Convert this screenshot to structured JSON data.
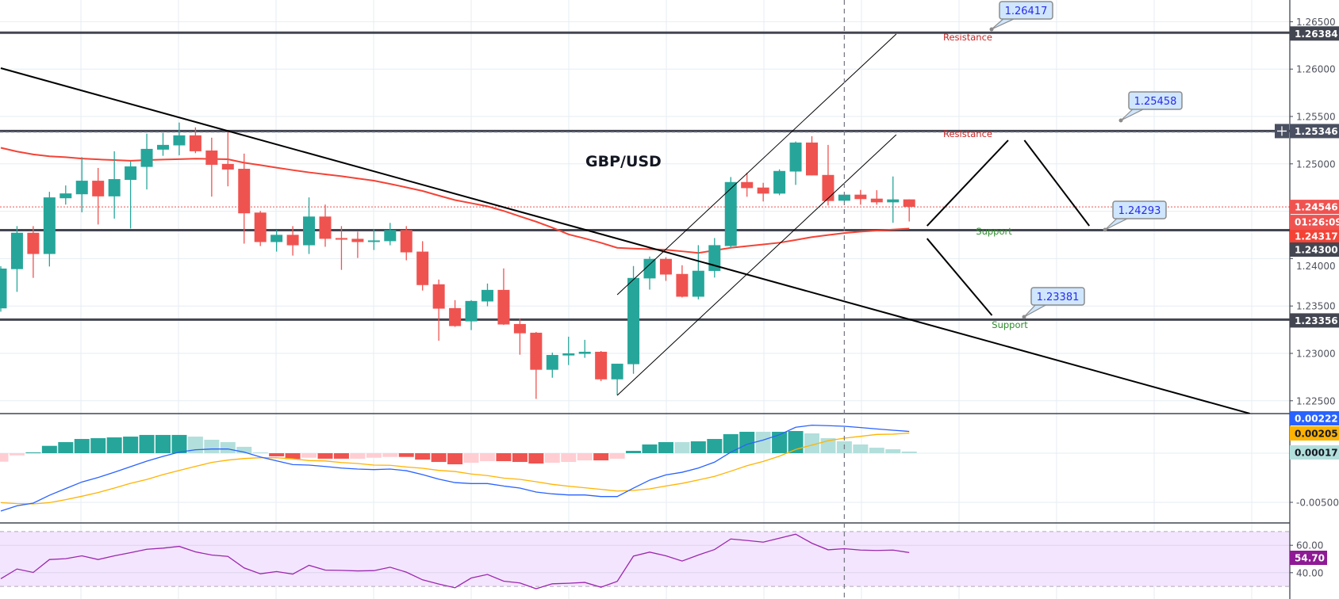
{
  "colors": {
    "up": "#26a69a",
    "down": "#ef5350",
    "hist_up_strong": "#26a69a",
    "hist_up_weak": "#b2dfdb",
    "hist_down_strong": "#ef5350",
    "hist_down_weak": "#ffcdd2",
    "macd": "#2962ff",
    "signal": "#ffb300",
    "rsi": "#9c27b0",
    "rsi_band": "#f3e5fd",
    "ma": "#f44336",
    "level": "#434651",
    "grid": "#e6edf3",
    "callout_fill": "#cfe6fd",
    "callout_text": "#2a2ae8",
    "resistance_text": "#c62828",
    "support_text": "#2e8b2e"
  },
  "chart_data": {
    "type": "candlestick",
    "title": "GBP/USD",
    "ylim": [
      1.22365,
      1.26729
    ],
    "price_axis_ticks": [
      "1.26500",
      "1.26000",
      "1.25500",
      "1.25000",
      "1.24000",
      "1.23500",
      "1.23000",
      "1.22500"
    ],
    "price_axis_tick_values": [
      1.265,
      1.26,
      1.255,
      1.25,
      1.24,
      1.235,
      1.23,
      1.225
    ],
    "grid": true,
    "candles_ohlc": [
      [
        1.23475,
        1.2392,
        1.2344,
        1.23895
      ],
      [
        1.23889,
        1.24343,
        1.23649,
        1.24273
      ],
      [
        1.24273,
        1.24343,
        1.23797,
        1.24049
      ],
      [
        1.24049,
        1.24705,
        1.23917,
        1.24646
      ],
      [
        1.24637,
        1.24772,
        1.2457,
        1.24688
      ],
      [
        1.24679,
        1.25071,
        1.24489,
        1.24822
      ],
      [
        1.24822,
        1.24957,
        1.2436,
        1.24657
      ],
      [
        1.24657,
        1.25133,
        1.24422,
        1.24839
      ],
      [
        1.24831,
        1.25024,
        1.24318,
        1.24973
      ],
      [
        1.24968,
        1.25318,
        1.2473,
        1.25158
      ],
      [
        1.2515,
        1.25326,
        1.25085,
        1.252
      ],
      [
        1.25195,
        1.25436,
        1.25091,
        1.25301
      ],
      [
        1.25301,
        1.25385,
        1.25113,
        1.25133
      ],
      [
        1.25141,
        1.25276,
        1.24654,
        1.2499
      ],
      [
        1.24999,
        1.25352,
        1.24763,
        1.2494
      ],
      [
        1.24948,
        1.25108,
        1.24158,
        1.24478
      ],
      [
        1.24486,
        1.24503,
        1.24133,
        1.24175
      ],
      [
        1.24175,
        1.24301,
        1.24074,
        1.24251
      ],
      [
        1.24251,
        1.24343,
        1.24032,
        1.24141
      ],
      [
        1.24141,
        1.24646,
        1.24049,
        1.24444
      ],
      [
        1.24444,
        1.2457,
        1.24125,
        1.24209
      ],
      [
        1.24217,
        1.24343,
        1.23881,
        1.242
      ],
      [
        1.24209,
        1.24284,
        1.24007,
        1.24175
      ],
      [
        1.24178,
        1.2431,
        1.24091,
        1.24192
      ],
      [
        1.24184,
        1.24377,
        1.24141,
        1.24301
      ],
      [
        1.24301,
        1.24343,
        1.23982,
        1.24066
      ],
      [
        1.24074,
        1.24184,
        1.23663,
        1.23721
      ],
      [
        1.23729,
        1.23779,
        1.23134,
        1.23472
      ],
      [
        1.23478,
        1.23562,
        1.2328,
        1.23288
      ],
      [
        1.23338,
        1.23562,
        1.23246,
        1.23553
      ],
      [
        1.23548,
        1.23737,
        1.23497,
        1.2367
      ],
      [
        1.2367,
        1.23897,
        1.233,
        1.23305
      ],
      [
        1.2331,
        1.23369,
        1.22986,
        1.23212
      ],
      [
        1.23218,
        1.23226,
        1.2252,
        1.22827
      ],
      [
        1.22827,
        1.23008,
        1.22743,
        1.22983
      ],
      [
        1.22978,
        1.23176,
        1.22877,
        1.23
      ],
      [
        1.22995,
        1.23143,
        1.22953,
        1.23017
      ],
      [
        1.23017,
        1.23025,
        1.22707,
        1.22726
      ],
      [
        1.22726,
        1.22891,
        1.2256,
        1.22891
      ],
      [
        1.22886,
        1.23922,
        1.22785,
        1.23796
      ],
      [
        1.23791,
        1.24022,
        1.23673,
        1.23997
      ],
      [
        1.23997,
        1.24014,
        1.23765,
        1.23832
      ],
      [
        1.23838,
        1.2393,
        1.2359,
        1.23598
      ],
      [
        1.23598,
        1.24142,
        1.2357,
        1.23872
      ],
      [
        1.2387,
        1.24217,
        1.238,
        1.24142
      ],
      [
        1.24133,
        1.24861,
        1.24111,
        1.24808
      ],
      [
        1.24808,
        1.24906,
        1.24653,
        1.24744
      ],
      [
        1.2475,
        1.248,
        1.24603,
        1.24686
      ],
      [
        1.24686,
        1.24942,
        1.24669,
        1.24925
      ],
      [
        1.24919,
        1.25236,
        1.24778,
        1.25225
      ],
      [
        1.25225,
        1.25292,
        1.24878,
        1.24878
      ],
      [
        1.24883,
        1.252,
        1.24561,
        1.24608
      ],
      [
        1.24611,
        1.24675,
        1.24611,
        1.24675
      ],
      [
        1.24675,
        1.24725,
        1.24569,
        1.24628
      ],
      [
        1.24633,
        1.24722,
        1.24569,
        1.24594
      ],
      [
        1.24594,
        1.24867,
        1.24378,
        1.24625
      ],
      [
        1.24625,
        1.24625,
        1.24392,
        1.24546
      ]
    ],
    "moving_average": [
      1.2517,
      1.2513,
      1.251,
      1.2508,
      1.2507,
      1.25056,
      1.25047,
      1.2504,
      1.25033,
      1.2504,
      1.25045,
      1.2505,
      1.25055,
      1.25052,
      1.25048,
      1.25012,
      1.24987,
      1.2496,
      1.24934,
      1.2491,
      1.2489,
      1.2487,
      1.24846,
      1.24823,
      1.24788,
      1.24752,
      1.24714,
      1.24665,
      1.24618,
      1.24585,
      1.24552,
      1.24503,
      1.24446,
      1.2439,
      1.24327,
      1.24256,
      1.24213,
      1.24167,
      1.24114,
      1.24106,
      1.24099,
      1.24093,
      1.24077,
      1.2406,
      1.24087,
      1.24114,
      1.24132,
      1.2415,
      1.24168,
      1.24197,
      1.24227,
      1.24249,
      1.2427,
      1.24284,
      1.24296,
      1.24306,
      1.24317
    ],
    "levels": [
      {
        "price": 1.26384,
        "label": "Resistance",
        "axis_label": "1.26384",
        "callout": "1.26417"
      },
      {
        "price": 1.25346,
        "label": "Resistance",
        "axis_label": "1.25346",
        "callout": "1.25458"
      },
      {
        "price": 1.243,
        "label": "Support",
        "axis_label": "1.24300",
        "callout": "1.24293"
      },
      {
        "price": 1.23356,
        "label": "Support",
        "axis_label": "1.23356",
        "callout": "1.23381"
      }
    ],
    "trendlines": [
      {
        "from": [
          0,
          1.2601
        ],
        "to": [
          77.0,
          1.22365
        ]
      },
      {
        "from": [
          38.0,
          1.23619
        ],
        "to": [
          55.2,
          1.2637
        ]
      },
      {
        "from": [
          38.0,
          1.22557
        ],
        "to": [
          55.2,
          1.25308
        ]
      },
      {
        "from": [
          57.1,
          1.24346
        ],
        "to": [
          62.1,
          1.25249
        ]
      },
      {
        "from": [
          63.1,
          1.25249
        ],
        "to": [
          67.1,
          1.24346
        ]
      },
      {
        "from": [
          57.1,
          1.24212
        ],
        "to": [
          61.1,
          1.23401
        ]
      }
    ],
    "cursor_index": 52,
    "last_price": 1.24546,
    "last_price_label": "1.24546",
    "countdown": "01:26:09",
    "ma_last_label": "1.24317",
    "macd": {
      "hist": [
        -0.00086,
        -0.00022,
        8e-05,
        0.00075,
        0.00113,
        0.00145,
        0.00153,
        0.00161,
        0.00169,
        0.00186,
        0.00186,
        0.00186,
        0.00169,
        0.00137,
        0.00113,
        0.00065,
        8e-05,
        -0.00032,
        -0.00059,
        -0.00046,
        -0.00056,
        -0.00056,
        -0.00056,
        -0.00046,
        -0.00038,
        -0.00038,
        -0.00065,
        -0.00089,
        -0.00113,
        -0.00097,
        -0.00081,
        -0.00081,
        -0.00089,
        -0.00105,
        -0.00097,
        -0.00089,
        -0.00073,
        -0.00073,
        -0.00056,
        0.00024,
        0.00089,
        0.00113,
        0.00113,
        0.00121,
        0.00145,
        0.00194,
        0.00218,
        0.00218,
        0.00218,
        0.00226,
        0.00202,
        0.00153,
        0.00121,
        0.00089,
        0.00056,
        0.0004,
        0.00017
      ],
      "hist_shade": [
        "lr",
        "lr",
        "g",
        "g",
        "g",
        "g",
        "g",
        "g",
        "g",
        "g",
        "g",
        "g",
        "lg",
        "lg",
        "lg",
        "lg",
        "lg",
        "r",
        "r",
        "lr",
        "r",
        "r",
        "lr",
        "lr",
        "lr",
        "r",
        "r",
        "r",
        "r",
        "lr",
        "lr",
        "r",
        "r",
        "r",
        "lr",
        "lr",
        "lr",
        "r",
        "lr",
        "g",
        "g",
        "g",
        "lg",
        "g",
        "g",
        "g",
        "g",
        "lg",
        "g",
        "g",
        "lg",
        "lg",
        "lg",
        "lg",
        "lg",
        "lg",
        "lg"
      ],
      "macd": [
        -0.00589,
        -0.00535,
        -0.00508,
        -0.00428,
        -0.0036,
        -0.00293,
        -0.00247,
        -0.00194,
        -0.00137,
        -0.00081,
        -0.00032,
        0.00011,
        0.00035,
        0.00043,
        0.00043,
        0.00011,
        -0.00038,
        -0.00078,
        -0.00116,
        -0.00121,
        -0.00135,
        -0.00151,
        -0.00161,
        -0.00167,
        -0.00161,
        -0.00178,
        -0.00218,
        -0.00264,
        -0.00299,
        -0.00309,
        -0.00309,
        -0.00334,
        -0.00355,
        -0.00395,
        -0.00414,
        -0.00425,
        -0.00425,
        -0.00441,
        -0.00441,
        -0.00355,
        -0.00274,
        -0.00221,
        -0.00194,
        -0.00151,
        -0.00091,
        0.00011,
        0.00091,
        0.00134,
        0.00188,
        0.00264,
        0.00285,
        0.0028,
        0.00274,
        0.00261,
        0.00247,
        0.00234,
        0.00222
      ],
      "signal": [
        -0.00503,
        -0.00513,
        -0.00516,
        -0.00503,
        -0.00473,
        -0.00438,
        -0.004,
        -0.00355,
        -0.00306,
        -0.00267,
        -0.00218,
        -0.00175,
        -0.00134,
        -0.00094,
        -0.0007,
        -0.00054,
        -0.00046,
        -0.00046,
        -0.00057,
        -0.00075,
        -0.00079,
        -0.00095,
        -0.00105,
        -0.00121,
        -0.00123,
        -0.0014,
        -0.00153,
        -0.00175,
        -0.00186,
        -0.00212,
        -0.00228,
        -0.00253,
        -0.00266,
        -0.0029,
        -0.00317,
        -0.00336,
        -0.00352,
        -0.00368,
        -0.00385,
        -0.00379,
        -0.00363,
        -0.00334,
        -0.00307,
        -0.00272,
        -0.00236,
        -0.00183,
        -0.00127,
        -0.00084,
        -0.0003,
        0.00038,
        0.00083,
        0.00127,
        0.00153,
        0.00172,
        0.00191,
        0.00194,
        0.00205
      ],
      "axis_ticks": [
        "-0.00500"
      ],
      "axis_tick_values": [
        -0.005
      ],
      "last_macd_label": "0.00222",
      "last_signal_label": "0.00205",
      "last_hist_label": "0.00017"
    },
    "rsi": {
      "values": [
        35.6,
        42.7,
        40.2,
        49.6,
        50.2,
        52.3,
        49.6,
        52.3,
        54.6,
        57.1,
        57.9,
        59.2,
        55.2,
        52.9,
        51.9,
        43.5,
        39.2,
        40.8,
        39.0,
        45.4,
        41.9,
        41.7,
        41.3,
        41.5,
        44.0,
        40.4,
        34.8,
        31.7,
        29.0,
        36.1,
        38.7,
        33.8,
        32.5,
        28.3,
        31.9,
        32.3,
        32.9,
        29.4,
        33.7,
        52.1,
        55.0,
        52.3,
        48.5,
        52.9,
        56.9,
        64.6,
        63.5,
        62.3,
        65.2,
        68.1,
        61.5,
        56.7,
        57.5,
        56.5,
        56.2,
        56.5,
        54.7
      ],
      "band": [
        30,
        70
      ],
      "axis_ticks": [
        "60.00",
        "40.00"
      ],
      "axis_tick_values": [
        60,
        40
      ],
      "last_label": "54.70"
    }
  }
}
